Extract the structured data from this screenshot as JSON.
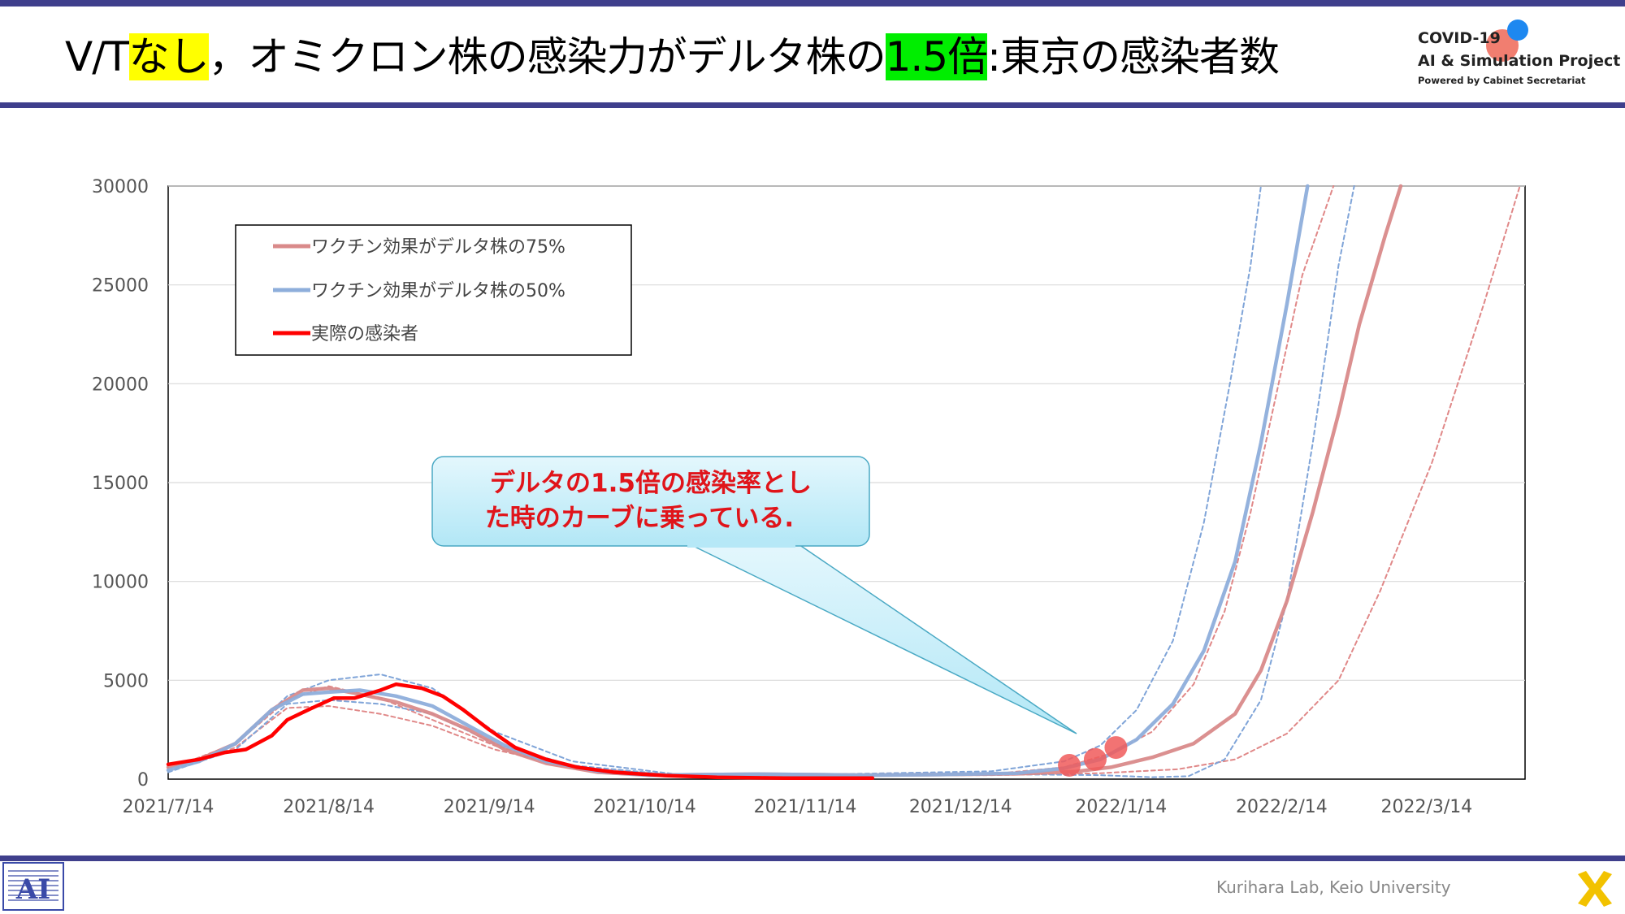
{
  "slide": {
    "title_parts": [
      "V/T",
      "なし",
      "，オミクロン株の感染力がデルタ株の",
      "1.5倍",
      ":東京の感染者数"
    ],
    "logo_line1": "COVID-19",
    "logo_line2": "AI & Simulation Project",
    "logo_line3": "Powered by Cabinet Secretariat",
    "footer": "Kurihara Lab, Keio University",
    "colors": {
      "band": "#3f3f8c",
      "highlight_yellow": "#ffff00",
      "highlight_green": "#00ee00"
    }
  },
  "callout": {
    "line1": "デルタの1.5倍の感染率とし",
    "line2": "た時のカーブに乗っている."
  },
  "chart_data": {
    "type": "line",
    "ylim": [
      0,
      30000
    ],
    "yticks": [
      0,
      5000,
      10000,
      15000,
      20000,
      25000,
      30000
    ],
    "xlim": [
      "2021-07-14",
      "2022-04-02"
    ],
    "xticks": [
      "2021/7/14",
      "2021/8/14",
      "2021/9/14",
      "2021/10/14",
      "2021/11/14",
      "2021/12/14",
      "2022/1/14",
      "2022/2/14",
      "2022/3/14"
    ],
    "xtick_dates": [
      "2021-07-14",
      "2021-08-14",
      "2021-09-14",
      "2021-10-14",
      "2021-11-14",
      "2021-12-14",
      "2022-01-14",
      "2022-02-14",
      "2022-03-14"
    ],
    "grid": "horizontal",
    "legend_position": "top-left",
    "series": [
      {
        "name": "ワクチン効果がデルタ株の75%",
        "color": "#d98a8a",
        "style": "solid",
        "points": [
          [
            "2021-07-14",
            600
          ],
          [
            "2021-07-20",
            1000
          ],
          [
            "2021-07-27",
            1800
          ],
          [
            "2021-08-03",
            3500
          ],
          [
            "2021-08-09",
            4500
          ],
          [
            "2021-08-14",
            4600
          ],
          [
            "2021-08-20",
            4300
          ],
          [
            "2021-08-27",
            3900
          ],
          [
            "2021-09-03",
            3300
          ],
          [
            "2021-09-10",
            2500
          ],
          [
            "2021-09-17",
            1500
          ],
          [
            "2021-09-25",
            800
          ],
          [
            "2021-10-05",
            350
          ],
          [
            "2021-10-15",
            200
          ],
          [
            "2021-11-05",
            250
          ],
          [
            "2021-11-25",
            200
          ],
          [
            "2021-12-10",
            230
          ],
          [
            "2021-12-25",
            270
          ],
          [
            "2022-01-05",
            380
          ],
          [
            "2022-01-12",
            600
          ],
          [
            "2022-01-20",
            1100
          ],
          [
            "2022-01-28",
            1800
          ],
          [
            "2022-02-05",
            3300
          ],
          [
            "2022-02-10",
            5500
          ],
          [
            "2022-02-15",
            9000
          ],
          [
            "2022-02-20",
            13500
          ],
          [
            "2022-02-25",
            18500
          ],
          [
            "2022-03-01",
            23000
          ],
          [
            "2022-03-06",
            27500
          ],
          [
            "2022-03-09",
            30000
          ]
        ]
      },
      {
        "name": "ワクチン効果がデルタ株の50%",
        "color": "#8eaedb",
        "style": "solid",
        "points": [
          [
            "2021-07-14",
            450
          ],
          [
            "2021-07-20",
            900
          ],
          [
            "2021-07-27",
            1800
          ],
          [
            "2021-08-03",
            3500
          ],
          [
            "2021-08-09",
            4300
          ],
          [
            "2021-08-14",
            4400
          ],
          [
            "2021-08-20",
            4500
          ],
          [
            "2021-08-27",
            4200
          ],
          [
            "2021-09-03",
            3700
          ],
          [
            "2021-09-10",
            2700
          ],
          [
            "2021-09-17",
            1700
          ],
          [
            "2021-09-25",
            900
          ],
          [
            "2021-10-05",
            400
          ],
          [
            "2021-10-15",
            200
          ],
          [
            "2021-11-05",
            250
          ],
          [
            "2021-11-25",
            200
          ],
          [
            "2021-12-10",
            230
          ],
          [
            "2021-12-25",
            300
          ],
          [
            "2022-01-03",
            550
          ],
          [
            "2022-01-10",
            1000
          ],
          [
            "2022-01-17",
            2000
          ],
          [
            "2022-01-24",
            3800
          ],
          [
            "2022-01-30",
            6500
          ],
          [
            "2022-02-05",
            11000
          ],
          [
            "2022-02-10",
            17000
          ],
          [
            "2022-02-15",
            24000
          ],
          [
            "2022-02-19",
            30000
          ]
        ]
      },
      {
        "name": "実際の感染者",
        "color": "#ff0000",
        "style": "solid",
        "points": [
          [
            "2021-07-14",
            750
          ],
          [
            "2021-07-20",
            1000
          ],
          [
            "2021-07-25",
            1350
          ],
          [
            "2021-07-29",
            1500
          ],
          [
            "2021-08-03",
            2200
          ],
          [
            "2021-08-06",
            3000
          ],
          [
            "2021-08-10",
            3500
          ],
          [
            "2021-08-15",
            4100
          ],
          [
            "2021-08-19",
            4100
          ],
          [
            "2021-08-24",
            4500
          ],
          [
            "2021-08-27",
            4800
          ],
          [
            "2021-09-01",
            4600
          ],
          [
            "2021-09-05",
            4200
          ],
          [
            "2021-09-09",
            3500
          ],
          [
            "2021-09-14",
            2500
          ],
          [
            "2021-09-19",
            1600
          ],
          [
            "2021-09-25",
            1000
          ],
          [
            "2021-10-01",
            600
          ],
          [
            "2021-10-08",
            350
          ],
          [
            "2021-10-18",
            180
          ],
          [
            "2021-10-28",
            90
          ],
          [
            "2021-11-10",
            50
          ],
          [
            "2021-11-27",
            50
          ]
        ]
      },
      {
        "name": "",
        "color": "#e08888",
        "style": "dashed",
        "points": [
          [
            "2021-07-14",
            500
          ],
          [
            "2021-07-27",
            1800
          ],
          [
            "2021-08-06",
            4000
          ],
          [
            "2021-08-14",
            4700
          ],
          [
            "2021-08-24",
            4100
          ],
          [
            "2021-09-03",
            3000
          ],
          [
            "2021-09-15",
            1700
          ],
          [
            "2021-09-30",
            600
          ],
          [
            "2021-10-20",
            200
          ],
          [
            "2021-11-20",
            200
          ],
          [
            "2021-12-20",
            260
          ],
          [
            "2022-01-03",
            600
          ],
          [
            "2022-01-12",
            1300
          ],
          [
            "2022-01-20",
            2400
          ],
          [
            "2022-01-28",
            4800
          ],
          [
            "2022-02-03",
            8500
          ],
          [
            "2022-02-08",
            13500
          ],
          [
            "2022-02-13",
            19500
          ],
          [
            "2022-02-18",
            25500
          ],
          [
            "2022-02-24",
            30000
          ]
        ]
      },
      {
        "name": "",
        "color": "#e08888",
        "style": "dashed",
        "points": [
          [
            "2021-07-14",
            400
          ],
          [
            "2021-07-27",
            1600
          ],
          [
            "2021-08-06",
            3600
          ],
          [
            "2021-08-14",
            3700
          ],
          [
            "2021-08-24",
            3300
          ],
          [
            "2021-09-03",
            2700
          ],
          [
            "2021-09-15",
            1500
          ],
          [
            "2021-09-30",
            600
          ],
          [
            "2021-10-20",
            200
          ],
          [
            "2021-11-20",
            180
          ],
          [
            "2021-12-20",
            200
          ],
          [
            "2022-01-10",
            300
          ],
          [
            "2022-01-25",
            500
          ],
          [
            "2022-02-05",
            1000
          ],
          [
            "2022-02-15",
            2300
          ],
          [
            "2022-02-25",
            5000
          ],
          [
            "2022-03-05",
            9500
          ],
          [
            "2022-03-15",
            16000
          ],
          [
            "2022-03-25",
            24000
          ],
          [
            "2022-04-01",
            30000
          ]
        ]
      },
      {
        "name": "",
        "color": "#7fa4d8",
        "style": "dashed",
        "points": [
          [
            "2021-07-14",
            400
          ],
          [
            "2021-07-27",
            1800
          ],
          [
            "2021-08-06",
            4200
          ],
          [
            "2021-08-14",
            5000
          ],
          [
            "2021-08-24",
            5300
          ],
          [
            "2021-09-03",
            4600
          ],
          [
            "2021-09-15",
            2400
          ],
          [
            "2021-09-30",
            900
          ],
          [
            "2021-10-20",
            250
          ],
          [
            "2021-11-20",
            250
          ],
          [
            "2021-12-20",
            400
          ],
          [
            "2022-01-03",
            900
          ],
          [
            "2022-01-10",
            1700
          ],
          [
            "2022-01-17",
            3500
          ],
          [
            "2022-01-24",
            7000
          ],
          [
            "2022-01-30",
            13000
          ],
          [
            "2022-02-04",
            20000
          ],
          [
            "2022-02-08",
            26000
          ],
          [
            "2022-02-10",
            30000
          ]
        ]
      },
      {
        "name": "",
        "color": "#7fa4d8",
        "style": "dashed",
        "points": [
          [
            "2021-07-14",
            350
          ],
          [
            "2021-07-27",
            1500
          ],
          [
            "2021-08-06",
            3800
          ],
          [
            "2021-08-14",
            4000
          ],
          [
            "2021-08-24",
            3800
          ],
          [
            "2021-09-03",
            3300
          ],
          [
            "2021-09-15",
            1800
          ],
          [
            "2021-09-30",
            700
          ],
          [
            "2021-10-20",
            200
          ],
          [
            "2021-11-20",
            200
          ],
          [
            "2021-12-20",
            250
          ],
          [
            "2022-01-10",
            200
          ],
          [
            "2022-01-20",
            100
          ],
          [
            "2022-01-27",
            150
          ],
          [
            "2022-02-03",
            1000
          ],
          [
            "2022-02-10",
            4000
          ],
          [
            "2022-02-15",
            9000
          ],
          [
            "2022-02-20",
            17000
          ],
          [
            "2022-02-25",
            26000
          ],
          [
            "2022-02-28",
            30000
          ]
        ]
      }
    ],
    "markers": {
      "color": "#f05a5a",
      "points": [
        [
          "2022-01-04",
          700
        ],
        [
          "2022-01-09",
          1000
        ],
        [
          "2022-01-13",
          1600
        ]
      ]
    }
  }
}
